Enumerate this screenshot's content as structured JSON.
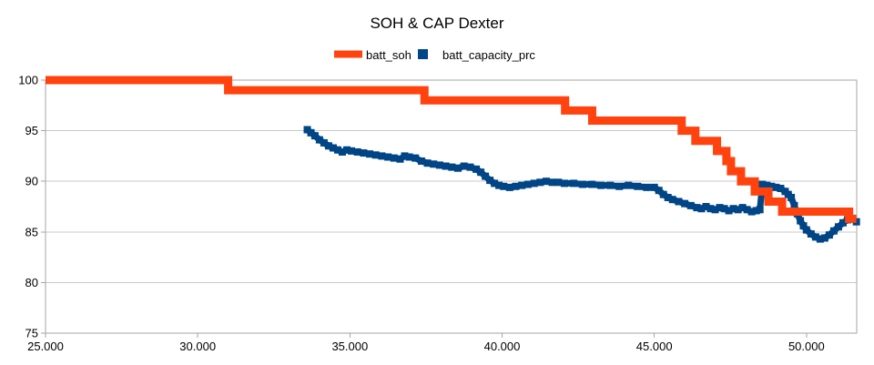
{
  "chart_data": {
    "type": "line",
    "title": "SOH & CAP Dexter",
    "xlabel": "",
    "ylabel": "",
    "grid": "horizontal",
    "legend_position": "top-center",
    "x_range": [
      25000,
      51650
    ],
    "y_range": [
      75,
      100
    ],
    "x_ticks": [
      25000,
      30000,
      35000,
      40000,
      45000,
      50000
    ],
    "x_tick_labels": [
      "25.000",
      "30.000",
      "35.000",
      "40.000",
      "45.000",
      "50.000"
    ],
    "y_ticks": [
      75,
      80,
      85,
      90,
      95,
      100
    ],
    "y_tick_labels": [
      "75",
      "80",
      "85",
      "90",
      "95",
      "100"
    ],
    "colors": {
      "grid": "#c9c9c9",
      "axis": "#a6a6a6",
      "background": "#ffffff",
      "text": "#000000"
    },
    "series": [
      {
        "name": "batt_soh",
        "color": "#ff420e",
        "style": "step-line",
        "line_width": 9,
        "points": [
          [
            25000,
            100
          ],
          [
            31000,
            99
          ],
          [
            37450,
            98
          ],
          [
            42070,
            97
          ],
          [
            42960,
            96
          ],
          [
            45900,
            95
          ],
          [
            46350,
            94
          ],
          [
            47060,
            93
          ],
          [
            47370,
            92
          ],
          [
            47520,
            91
          ],
          [
            47850,
            90
          ],
          [
            48300,
            89
          ],
          [
            48750,
            88
          ],
          [
            49200,
            87
          ],
          [
            51400,
            86.3
          ],
          [
            51640,
            86.3
          ]
        ]
      },
      {
        "name": "batt_capacity_prc",
        "color": "#004586",
        "style": "square-markers",
        "marker_size": 8,
        "points": [
          [
            33600,
            95.1
          ],
          [
            33720,
            94.8
          ],
          [
            33850,
            94.5
          ],
          [
            34000,
            94.1
          ],
          [
            34150,
            93.8
          ],
          [
            34300,
            93.5
          ],
          [
            34450,
            93.3
          ],
          [
            34600,
            93.1
          ],
          [
            34750,
            92.9
          ],
          [
            34900,
            93.1
          ],
          [
            35050,
            93.0
          ],
          [
            35250,
            92.9
          ],
          [
            35450,
            92.8
          ],
          [
            35650,
            92.7
          ],
          [
            35850,
            92.6
          ],
          [
            36050,
            92.5
          ],
          [
            36250,
            92.4
          ],
          [
            36450,
            92.3
          ],
          [
            36650,
            92.2
          ],
          [
            36800,
            92.5
          ],
          [
            36950,
            92.4
          ],
          [
            37150,
            92.3
          ],
          [
            37350,
            92.0
          ],
          [
            37550,
            91.8
          ],
          [
            37750,
            91.7
          ],
          [
            37950,
            91.6
          ],
          [
            38150,
            91.5
          ],
          [
            38350,
            91.4
          ],
          [
            38550,
            91.3
          ],
          [
            38750,
            91.5
          ],
          [
            38950,
            91.4
          ],
          [
            39150,
            91.2
          ],
          [
            39300,
            90.9
          ],
          [
            39450,
            90.5
          ],
          [
            39600,
            90.1
          ],
          [
            39750,
            89.8
          ],
          [
            39900,
            89.6
          ],
          [
            40050,
            89.5
          ],
          [
            40250,
            89.4
          ],
          [
            40450,
            89.5
          ],
          [
            40650,
            89.6
          ],
          [
            40850,
            89.7
          ],
          [
            41050,
            89.8
          ],
          [
            41250,
            89.9
          ],
          [
            41450,
            90.0
          ],
          [
            41650,
            89.9
          ],
          [
            41850,
            89.9
          ],
          [
            42050,
            89.8
          ],
          [
            42350,
            89.8
          ],
          [
            42650,
            89.7
          ],
          [
            42950,
            89.7
          ],
          [
            43250,
            89.6
          ],
          [
            43550,
            89.6
          ],
          [
            43850,
            89.5
          ],
          [
            44150,
            89.6
          ],
          [
            44450,
            89.5
          ],
          [
            44750,
            89.4
          ],
          [
            45000,
            89.4
          ],
          [
            45150,
            89.1
          ],
          [
            45300,
            88.7
          ],
          [
            45450,
            88.4
          ],
          [
            45600,
            88.2
          ],
          [
            45800,
            88.0
          ],
          [
            46000,
            87.8
          ],
          [
            46200,
            87.6
          ],
          [
            46400,
            87.4
          ],
          [
            46550,
            87.3
          ],
          [
            46700,
            87.5
          ],
          [
            46850,
            87.3
          ],
          [
            47000,
            87.2
          ],
          [
            47150,
            87.4
          ],
          [
            47300,
            87.3
          ],
          [
            47450,
            87.1
          ],
          [
            47600,
            87.3
          ],
          [
            47750,
            87.2
          ],
          [
            47900,
            87.4
          ],
          [
            48050,
            87.2
          ],
          [
            48200,
            87.0
          ],
          [
            48350,
            87.1
          ],
          [
            48470,
            87.2
          ],
          [
            48550,
            89.7
          ],
          [
            48700,
            89.6
          ],
          [
            48850,
            89.5
          ],
          [
            49000,
            89.4
          ],
          [
            49150,
            89.3
          ],
          [
            49300,
            89.0
          ],
          [
            49400,
            88.7
          ],
          [
            49500,
            88.4
          ],
          [
            49600,
            87.6
          ],
          [
            49700,
            86.8
          ],
          [
            49800,
            86.1
          ],
          [
            49900,
            85.6
          ],
          [
            50000,
            85.2
          ],
          [
            50150,
            84.8
          ],
          [
            50300,
            84.5
          ],
          [
            50450,
            84.3
          ],
          [
            50600,
            84.4
          ],
          [
            50750,
            84.7
          ],
          [
            50900,
            85.1
          ],
          [
            51050,
            85.5
          ],
          [
            51200,
            85.9
          ],
          [
            51350,
            86.2
          ],
          [
            51500,
            86.3
          ],
          [
            51640,
            86.0
          ]
        ]
      }
    ]
  }
}
